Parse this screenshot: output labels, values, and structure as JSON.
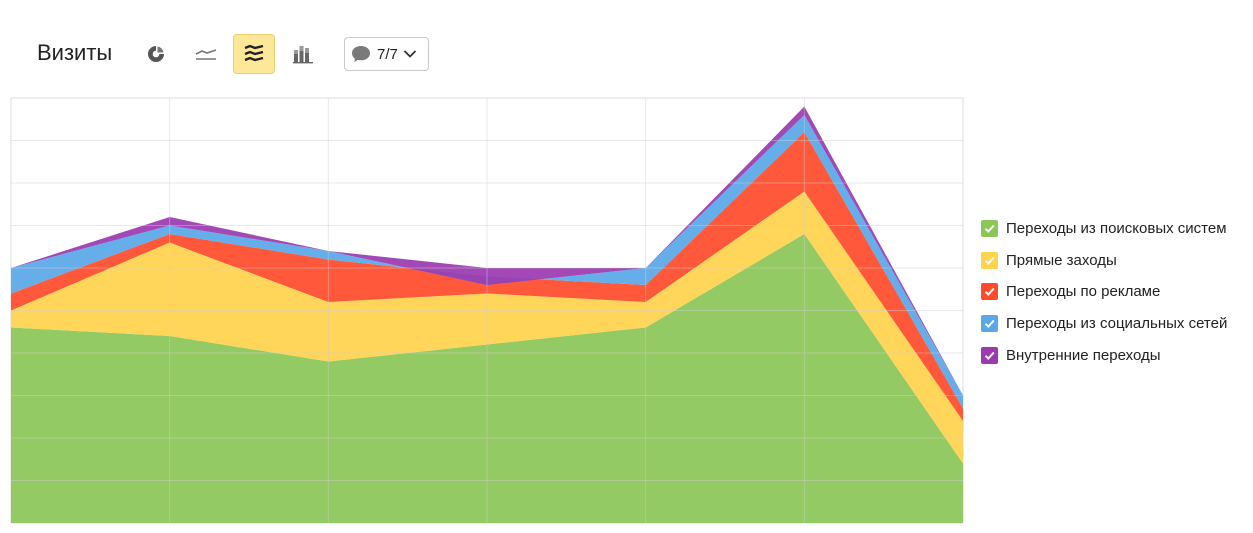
{
  "header": {
    "title": "Визиты",
    "notes_count": "7/7"
  },
  "toolbar": {
    "buttons": [
      {
        "icon": "pie-chart-icon",
        "active": false
      },
      {
        "icon": "line-chart-icon",
        "active": false
      },
      {
        "icon": "stacked-area-chart-icon",
        "active": true
      },
      {
        "icon": "bar-chart-icon",
        "active": false
      }
    ],
    "notes_icon": "speech-bubble-icon",
    "dropdown_icon": "chevron-down-icon"
  },
  "chart_data": {
    "type": "area",
    "stacked": true,
    "x": [
      1,
      2,
      3,
      4,
      5,
      6,
      7
    ],
    "ylim": [
      0,
      100
    ],
    "grid": true,
    "legend_position": "right",
    "series": [
      {
        "name": "Переходы из поисковых систем",
        "color": "#8cc657",
        "values": [
          46,
          44,
          38,
          42,
          46,
          68,
          14
        ]
      },
      {
        "name": "Прямые заходы",
        "color": "#ffd34e",
        "values": [
          4,
          22,
          14,
          12,
          6,
          10,
          10
        ]
      },
      {
        "name": "Переходы по рекламе",
        "color": "#ff4b2b",
        "values": [
          4,
          2,
          10,
          4,
          4,
          14,
          3
        ]
      },
      {
        "name": "Переходы из социальных сетей",
        "color": "#5aa8e8",
        "values": [
          6,
          2,
          2,
          -2,
          4,
          4,
          3
        ]
      },
      {
        "name": "Внутренние переходы",
        "color": "#9b3bb0",
        "values": [
          0,
          2,
          0,
          4,
          0,
          2,
          0
        ]
      }
    ]
  }
}
